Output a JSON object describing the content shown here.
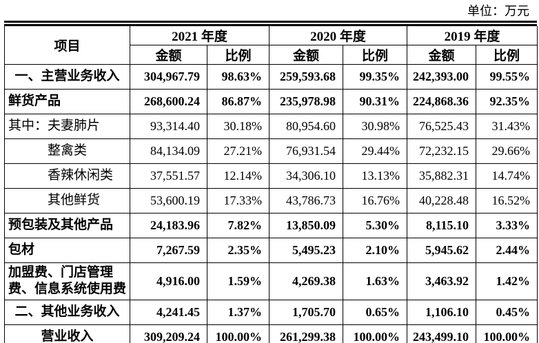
{
  "unit_label": "单位：万元",
  "table": {
    "item_header": "项目",
    "years": [
      "2021 年度",
      "2020 年度",
      "2019 年度"
    ],
    "amount_header": "金额",
    "ratio_header": "比例",
    "rows": [
      {
        "label": "一、主营业务收入",
        "bold": true,
        "label_style": "center",
        "values": [
          "304,967.79",
          "98.63%",
          "259,593.68",
          "99.35%",
          "242,393.00",
          "99.55%"
        ]
      },
      {
        "label": "鲜货产品",
        "bold": true,
        "label_style": "left",
        "values": [
          "268,600.24",
          "86.87%",
          "235,978.98",
          "90.31%",
          "224,868.36",
          "92.35%"
        ]
      },
      {
        "label": "其中：夫妻肺片",
        "bold": false,
        "label_style": "left",
        "values": [
          "93,314.40",
          "30.18%",
          "80,954.60",
          "30.98%",
          "76,525.43",
          "31.43%"
        ]
      },
      {
        "label": "整禽类",
        "bold": false,
        "label_style": "indent",
        "values": [
          "84,134.09",
          "27.21%",
          "76,931.54",
          "29.44%",
          "72,232.15",
          "29.66%"
        ]
      },
      {
        "label": "香辣休闲类",
        "bold": false,
        "label_style": "indent",
        "values": [
          "37,551.57",
          "12.14%",
          "34,306.10",
          "13.13%",
          "35,882.31",
          "14.74%"
        ]
      },
      {
        "label": "其他鲜货",
        "bold": false,
        "label_style": "indent",
        "values": [
          "53,600.19",
          "17.33%",
          "43,786.73",
          "16.76%",
          "40,228.48",
          "16.52%"
        ]
      },
      {
        "label": "预包装及其他产品",
        "bold": true,
        "label_style": "left",
        "values": [
          "24,183.96",
          "7.82%",
          "13,850.09",
          "5.30%",
          "8,115.10",
          "3.33%"
        ]
      },
      {
        "label": "包材",
        "bold": true,
        "label_style": "left",
        "values": [
          "7,267.59",
          "2.35%",
          "5,495.23",
          "2.10%",
          "5,945.62",
          "2.44%"
        ]
      },
      {
        "label": "加盟费、门店管理费、信息系统使用费",
        "bold": true,
        "label_style": "left",
        "values": [
          "4,916.00",
          "1.59%",
          "4,269.38",
          "1.63%",
          "3,463.92",
          "1.42%"
        ]
      },
      {
        "label": "二、其他业务收入",
        "bold": true,
        "label_style": "center",
        "values": [
          "4,241.45",
          "1.37%",
          "1,705.70",
          "0.65%",
          "1,106.10",
          "0.45%"
        ]
      },
      {
        "label": "营业收入",
        "bold": true,
        "label_style": "center",
        "values": [
          "309,209.24",
          "100.00%",
          "261,299.38",
          "100.00%",
          "243,499.10",
          "100.00%"
        ]
      }
    ]
  }
}
